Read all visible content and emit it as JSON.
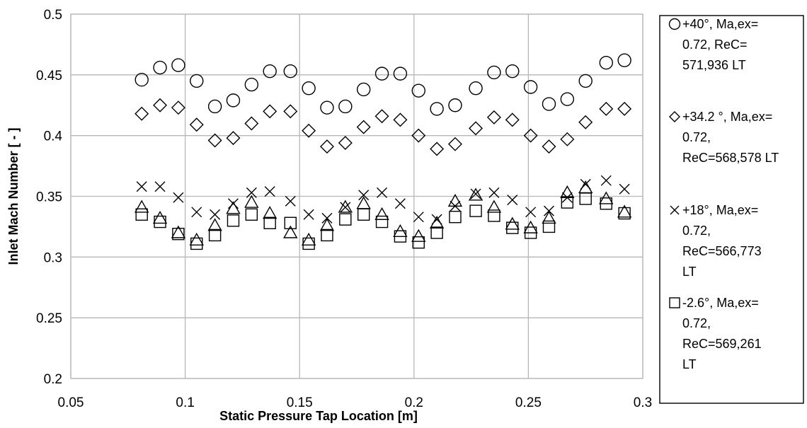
{
  "chart_data": {
    "type": "scatter",
    "title": "",
    "xlabel": "Static Pressure Tap Location [m]",
    "ylabel": "Inlet Mach Number [ - ]",
    "xlim": [
      0.05,
      0.3
    ],
    "ylim": [
      0.2,
      0.5
    ],
    "x_ticks": [
      "0.05",
      "0.1",
      "0.15",
      "0.2",
      "0.25",
      "0.3"
    ],
    "y_ticks": [
      "0.2",
      "0.25",
      "0.3",
      "0.35",
      "0.4",
      "0.45",
      "0.5"
    ],
    "grid": true,
    "legend_position": "right",
    "x": [
      0.081,
      0.089,
      0.097,
      0.105,
      0.113,
      0.121,
      0.129,
      0.137,
      0.146,
      0.154,
      0.162,
      0.17,
      0.178,
      0.186,
      0.194,
      0.202,
      0.21,
      0.218,
      0.227,
      0.235,
      0.243,
      0.251,
      0.259,
      0.267,
      0.275,
      0.284,
      0.292
    ],
    "series": [
      {
        "name_lines": [
          "+40°, Ma,ex=",
          "0.72, ReC=",
          "571,936  LT"
        ],
        "marker": "circle",
        "values": [
          0.446,
          0.456,
          0.458,
          0.445,
          0.424,
          0.429,
          0.442,
          0.453,
          0.453,
          0.439,
          0.423,
          0.424,
          0.438,
          0.451,
          0.451,
          0.437,
          0.422,
          0.425,
          0.439,
          0.452,
          0.453,
          0.44,
          0.426,
          0.43,
          0.445,
          0.46,
          0.462
        ]
      },
      {
        "name_lines": [
          "+34.2 °, Ma,ex=",
          "0.72,",
          "ReC=568,578 LT"
        ],
        "marker": "diamond",
        "values": [
          0.418,
          0.425,
          0.423,
          0.409,
          0.396,
          0.398,
          0.41,
          0.42,
          0.42,
          0.404,
          0.391,
          0.394,
          0.407,
          0.416,
          0.413,
          0.4,
          0.389,
          0.393,
          0.406,
          0.415,
          0.413,
          0.4,
          0.391,
          0.397,
          0.411,
          0.422,
          0.422
        ]
      },
      {
        "name_lines": [
          "+18°, Ma,ex=",
          "0.72,",
          "ReC=566,773",
          "LT"
        ],
        "marker": "x",
        "values": [
          0.358,
          0.358,
          0.349,
          0.337,
          0.335,
          0.344,
          0.353,
          0.354,
          0.346,
          0.335,
          0.332,
          0.341,
          0.351,
          0.353,
          0.344,
          0.333,
          0.331,
          0.342,
          0.352,
          0.353,
          0.347,
          0.337,
          0.338,
          0.349,
          0.36,
          0.363,
          0.356
        ]
      },
      {
        "name_lines": [
          "-2.6°, Ma,ex=",
          "0.72,",
          "ReC=569,261",
          "LT"
        ],
        "marker": "square",
        "values": [
          0.335,
          0.329,
          0.319,
          0.311,
          0.318,
          0.33,
          0.335,
          0.328,
          0.328,
          0.311,
          0.318,
          0.331,
          0.335,
          0.329,
          0.317,
          0.312,
          0.32,
          0.333,
          0.338,
          0.334,
          0.324,
          0.32,
          0.325,
          0.345,
          0.348,
          0.344,
          0.336
        ]
      },
      {
        "name_lines": [],
        "marker": "triangle",
        "values": [
          0.341,
          0.332,
          0.32,
          0.314,
          0.326,
          0.34,
          0.345,
          0.336,
          0.32,
          0.314,
          0.326,
          0.341,
          0.344,
          0.335,
          0.321,
          0.317,
          0.328,
          0.346,
          0.351,
          0.341,
          0.327,
          0.324,
          0.332,
          0.353,
          0.357,
          0.348,
          0.337
        ]
      }
    ]
  }
}
